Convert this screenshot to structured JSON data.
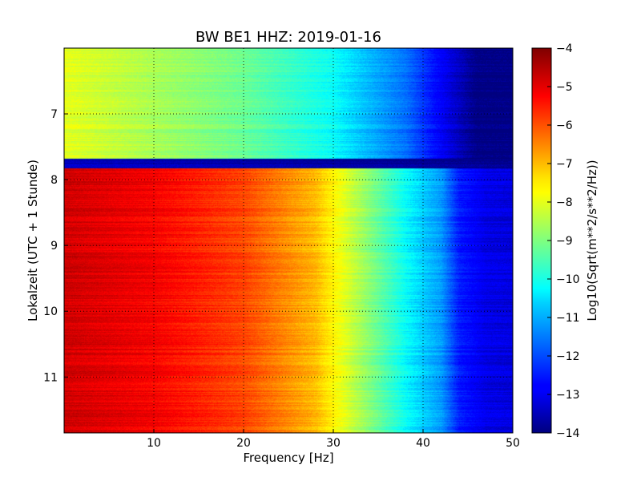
{
  "chart_data": {
    "type": "heatmap",
    "title": "BW BE1 HHZ: 2019-01-16",
    "xlabel": "Frequency [Hz]",
    "ylabel": "Lokalzeit (UTC + 1 Stunde)",
    "xlim": [
      0,
      50
    ],
    "ylim": [
      11.85,
      6.0
    ],
    "x_ticks": [
      10,
      20,
      30,
      40,
      50
    ],
    "x_tick_labels": [
      "10",
      "20",
      "30",
      "40",
      "50"
    ],
    "y_ticks": [
      7,
      8,
      9,
      10,
      11
    ],
    "y_tick_labels": [
      "7",
      "8",
      "9",
      "10",
      "11"
    ],
    "y_axis_inverted": true,
    "grid": true,
    "colormap": "jet",
    "colorbar": {
      "label": "Log10(Sqrt(m**2/s**2/Hz))",
      "range": [
        -14,
        -4
      ],
      "ticks": [
        -4,
        -5,
        -6,
        -7,
        -8,
        -9,
        -10,
        -11,
        -12,
        -13,
        -14
      ],
      "tick_labels": [
        "−4",
        "−5",
        "−6",
        "−7",
        "−8",
        "−9",
        "−10",
        "−11",
        "−12",
        "−13",
        "−14"
      ]
    },
    "regions": [
      {
        "time_range": [
          6.0,
          7.68
        ],
        "level_profile_by_frequency": [
          [
            0,
            -8.0
          ],
          [
            10,
            -8.6
          ],
          [
            20,
            -9.2
          ],
          [
            30,
            -10.2
          ],
          [
            38,
            -11.6
          ],
          [
            43,
            -13.2
          ],
          [
            46,
            -14.0
          ],
          [
            50,
            -14.0
          ]
        ]
      },
      {
        "time_range": [
          7.68,
          7.82
        ],
        "level_profile_by_frequency": [
          [
            0,
            -13.5
          ],
          [
            50,
            -14.0
          ]
        ]
      },
      {
        "time_range": [
          7.82,
          11.85
        ],
        "level_profile_by_frequency": [
          [
            0,
            -4.8
          ],
          [
            10,
            -5.2
          ],
          [
            20,
            -5.9
          ],
          [
            28,
            -7.0
          ],
          [
            32,
            -8.3
          ],
          [
            38,
            -10.2
          ],
          [
            42,
            -11.2
          ],
          [
            44,
            -12.5
          ],
          [
            47,
            -13.1
          ],
          [
            50,
            -13.2
          ]
        ]
      }
    ]
  }
}
